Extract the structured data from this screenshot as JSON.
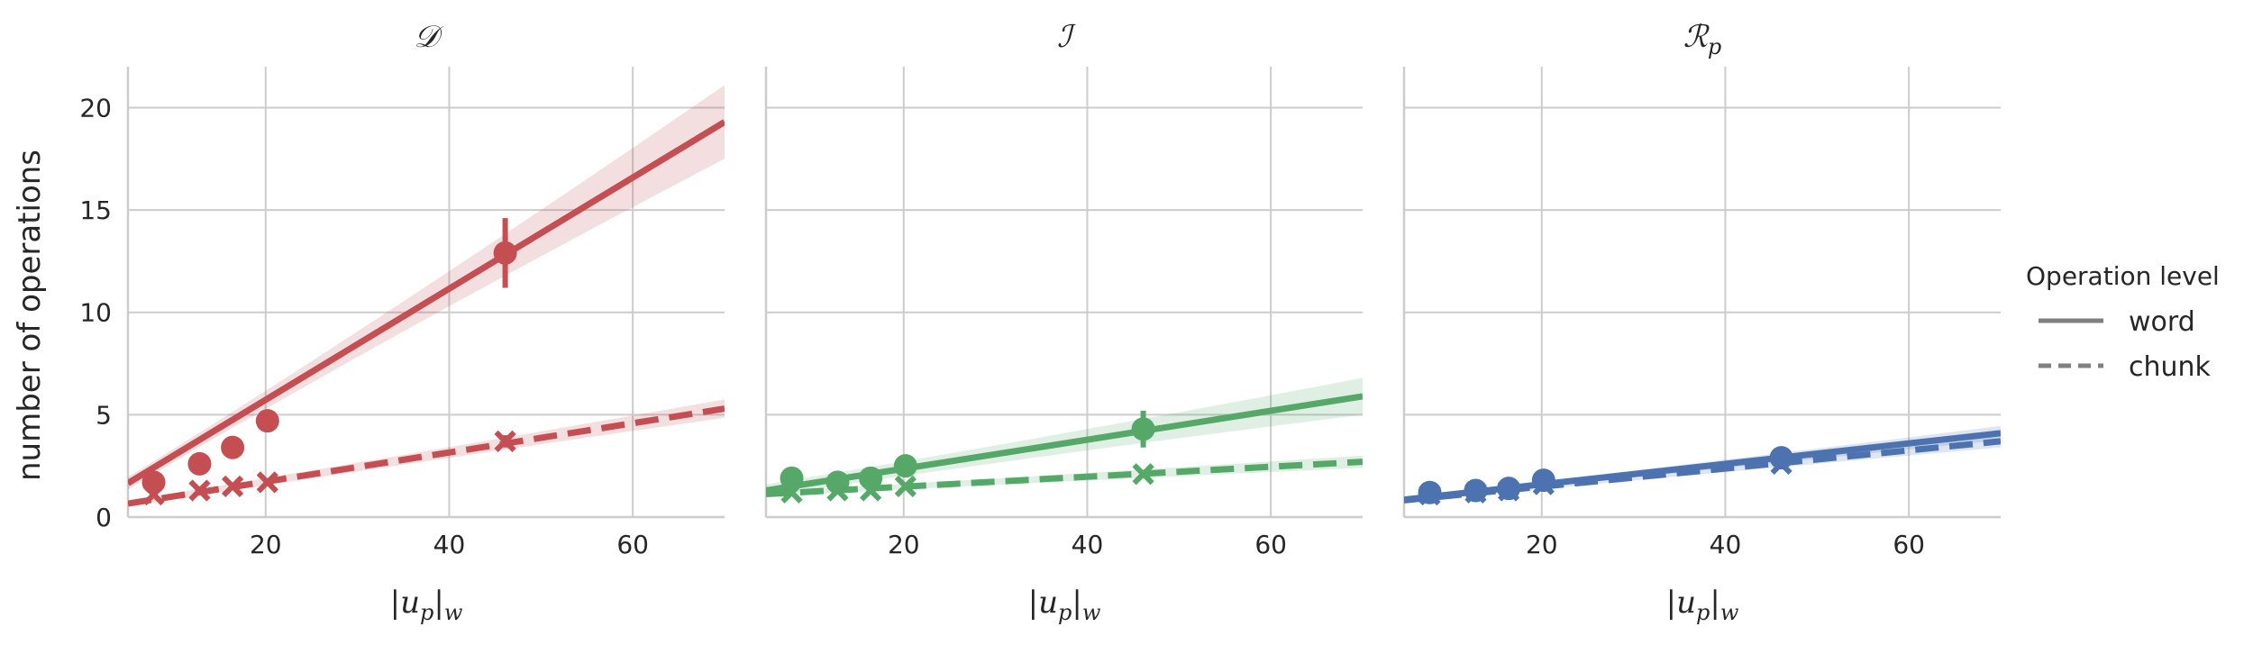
{
  "chart_data": {
    "type": "scatter",
    "ylabel": "number of operations",
    "xlabel_parts": [
      "|u",
      "p",
      "|",
      "w"
    ],
    "xlim": [
      5,
      70
    ],
    "ylim": [
      0,
      22
    ],
    "xticks": [
      "20",
      "40",
      "60"
    ],
    "yticks": [
      "0",
      "5",
      "10",
      "15",
      "20"
    ],
    "grid": true,
    "legend": {
      "title": "Operation level",
      "placement": "right",
      "entries": [
        "word",
        "chunk"
      ]
    },
    "panels": [
      {
        "title_main": "𝒟",
        "title_sub": "",
        "color": "#c44e52",
        "series": [
          {
            "name": "word",
            "marker": "circle",
            "x": [
              7.8,
              12.8,
              16.4,
              20.2,
              46.1
            ],
            "y": [
              1.7,
              2.6,
              3.4,
              4.7,
              12.9
            ],
            "err": [
              0.3,
              0.3,
              0.3,
              0.3,
              1.7
            ],
            "fit": [
              0.3,
              0.2714
            ],
            "band": [
              0.3,
              1.8
            ]
          },
          {
            "name": "chunk",
            "marker": "x",
            "x": [
              7.8,
              12.8,
              16.4,
              20.2,
              46.1
            ],
            "y": [
              1.1,
              1.3,
              1.5,
              1.7,
              3.7
            ],
            "err": [
              0.15,
              0.15,
              0.15,
              0.15,
              0.3
            ],
            "fit": [
              0.3,
              0.0714
            ],
            "band": [
              0.15,
              0.45
            ]
          }
        ]
      },
      {
        "title_main": "ℐ",
        "title_sub": "",
        "color": "#55a868",
        "series": [
          {
            "name": "word",
            "marker": "circle",
            "x": [
              7.8,
              12.8,
              16.4,
              20.2,
              46.1
            ],
            "y": [
              1.9,
              1.7,
              1.9,
              2.5,
              4.3
            ],
            "err": [
              0.4,
              0.3,
              0.3,
              0.3,
              0.9
            ],
            "fit": [
              0.95,
              0.0707
            ],
            "band": [
              0.3,
              0.9
            ]
          },
          {
            "name": "chunk",
            "marker": "x",
            "x": [
              7.8,
              12.8,
              16.4,
              20.2,
              46.1
            ],
            "y": [
              1.2,
              1.3,
              1.3,
              1.5,
              2.1
            ],
            "err": [
              0.15,
              0.15,
              0.15,
              0.15,
              0.2
            ],
            "fit": [
              1.0,
              0.0243
            ],
            "band": [
              0.12,
              0.3
            ]
          }
        ]
      },
      {
        "title_main": "ℛ",
        "title_sub": "p",
        "color": "#4c72b0",
        "series": [
          {
            "name": "word",
            "marker": "circle",
            "x": [
              7.8,
              12.8,
              16.4,
              20.2,
              46.1
            ],
            "y": [
              1.2,
              1.3,
              1.4,
              1.8,
              2.9
            ],
            "err": [
              0.15,
              0.15,
              0.15,
              0.15,
              0.2
            ],
            "fit": [
              0.6,
              0.05
            ],
            "band": [
              0.12,
              0.35
            ]
          },
          {
            "name": "chunk",
            "marker": "x",
            "x": [
              7.8,
              12.8,
              16.4,
              20.2,
              46.1
            ],
            "y": [
              1.1,
              1.2,
              1.3,
              1.6,
              2.6
            ],
            "err": [
              0.1,
              0.1,
              0.1,
              0.1,
              0.15
            ],
            "fit": [
              0.6,
              0.0443
            ],
            "band": [
              0.1,
              0.3
            ]
          }
        ]
      }
    ]
  }
}
